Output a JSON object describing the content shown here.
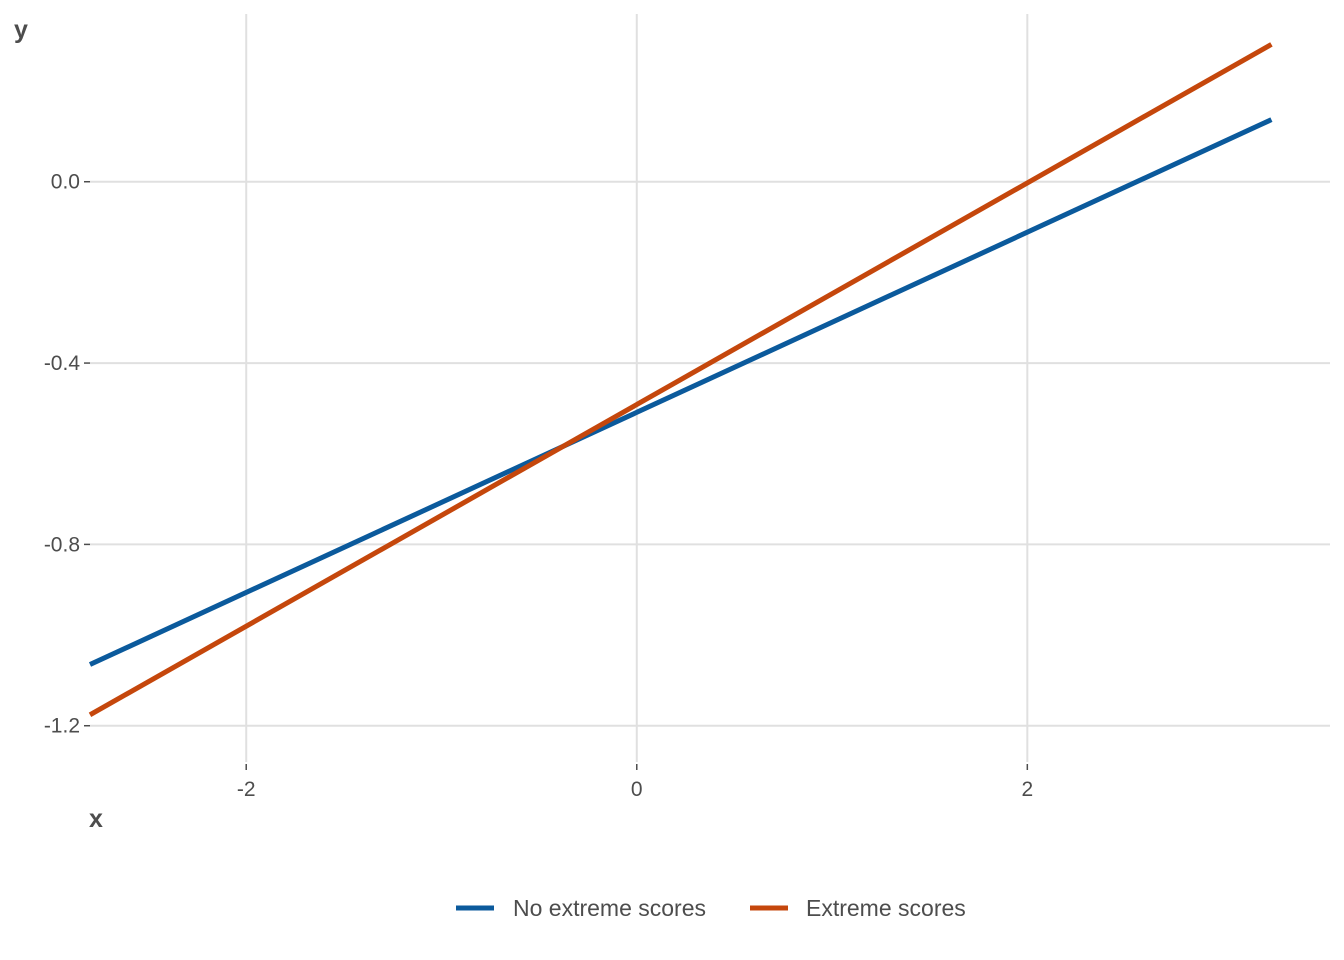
{
  "chart_data": {
    "type": "line",
    "title": "",
    "xlabel": "x",
    "ylabel": "y",
    "xlim": [
      -2.8,
      3.55
    ],
    "ylim": [
      -1.28,
      0.37
    ],
    "x_ticks": [
      -2,
      0,
      2
    ],
    "x_tick_labels": [
      "-2",
      "0",
      "2"
    ],
    "y_ticks": [
      -1.2,
      -0.8,
      -0.4,
      0.0
    ],
    "y_tick_labels": [
      "-1.2",
      "-0.8",
      "-0.4",
      "0.0"
    ],
    "grid": true,
    "legend_position": "bottom",
    "series": [
      {
        "name": "No extreme scores",
        "color": "#0b5a9c",
        "x": [
          -2.8,
          3.25
        ],
        "y": [
          -1.065,
          0.137
        ]
      },
      {
        "name": "Extreme scores",
        "color": "#c5470c",
        "x": [
          -2.8,
          3.25
        ],
        "y": [
          -1.176,
          0.303
        ]
      }
    ]
  }
}
